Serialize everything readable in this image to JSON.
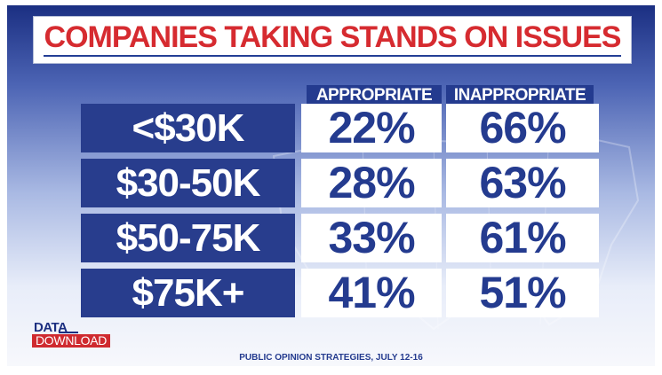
{
  "header": {
    "title": "COMPANIES TAKING STANDS ON ISSUES"
  },
  "branding": {
    "logo_top": "DATA",
    "logo_bottom": "DOWNLOAD"
  },
  "footer": {
    "source": "PUBLIC OPINION STRATEGIES, JULY 12-16"
  },
  "colors": {
    "navy": "#283d8d",
    "red": "#d62b30",
    "white": "#ffffff"
  },
  "chart_data": {
    "type": "table",
    "title": "COMPANIES TAKING STANDS ON ISSUES",
    "columns": [
      "APPROPRIATE",
      "INAPPROPRIATE"
    ],
    "rows": [
      {
        "label": "<$30K",
        "cells": [
          "22%",
          "66%"
        ]
      },
      {
        "label": "$30-50K",
        "cells": [
          "28%",
          "63%"
        ]
      },
      {
        "label": "$50-75K",
        "cells": [
          "33%",
          "61%"
        ]
      },
      {
        "label": "$75K+",
        "cells": [
          "41%",
          "51%"
        ]
      }
    ],
    "series": [
      {
        "name": "APPROPRIATE",
        "values": [
          22,
          28,
          33,
          41
        ]
      },
      {
        "name": "INAPPROPRIATE",
        "values": [
          66,
          63,
          61,
          51
        ]
      }
    ]
  }
}
